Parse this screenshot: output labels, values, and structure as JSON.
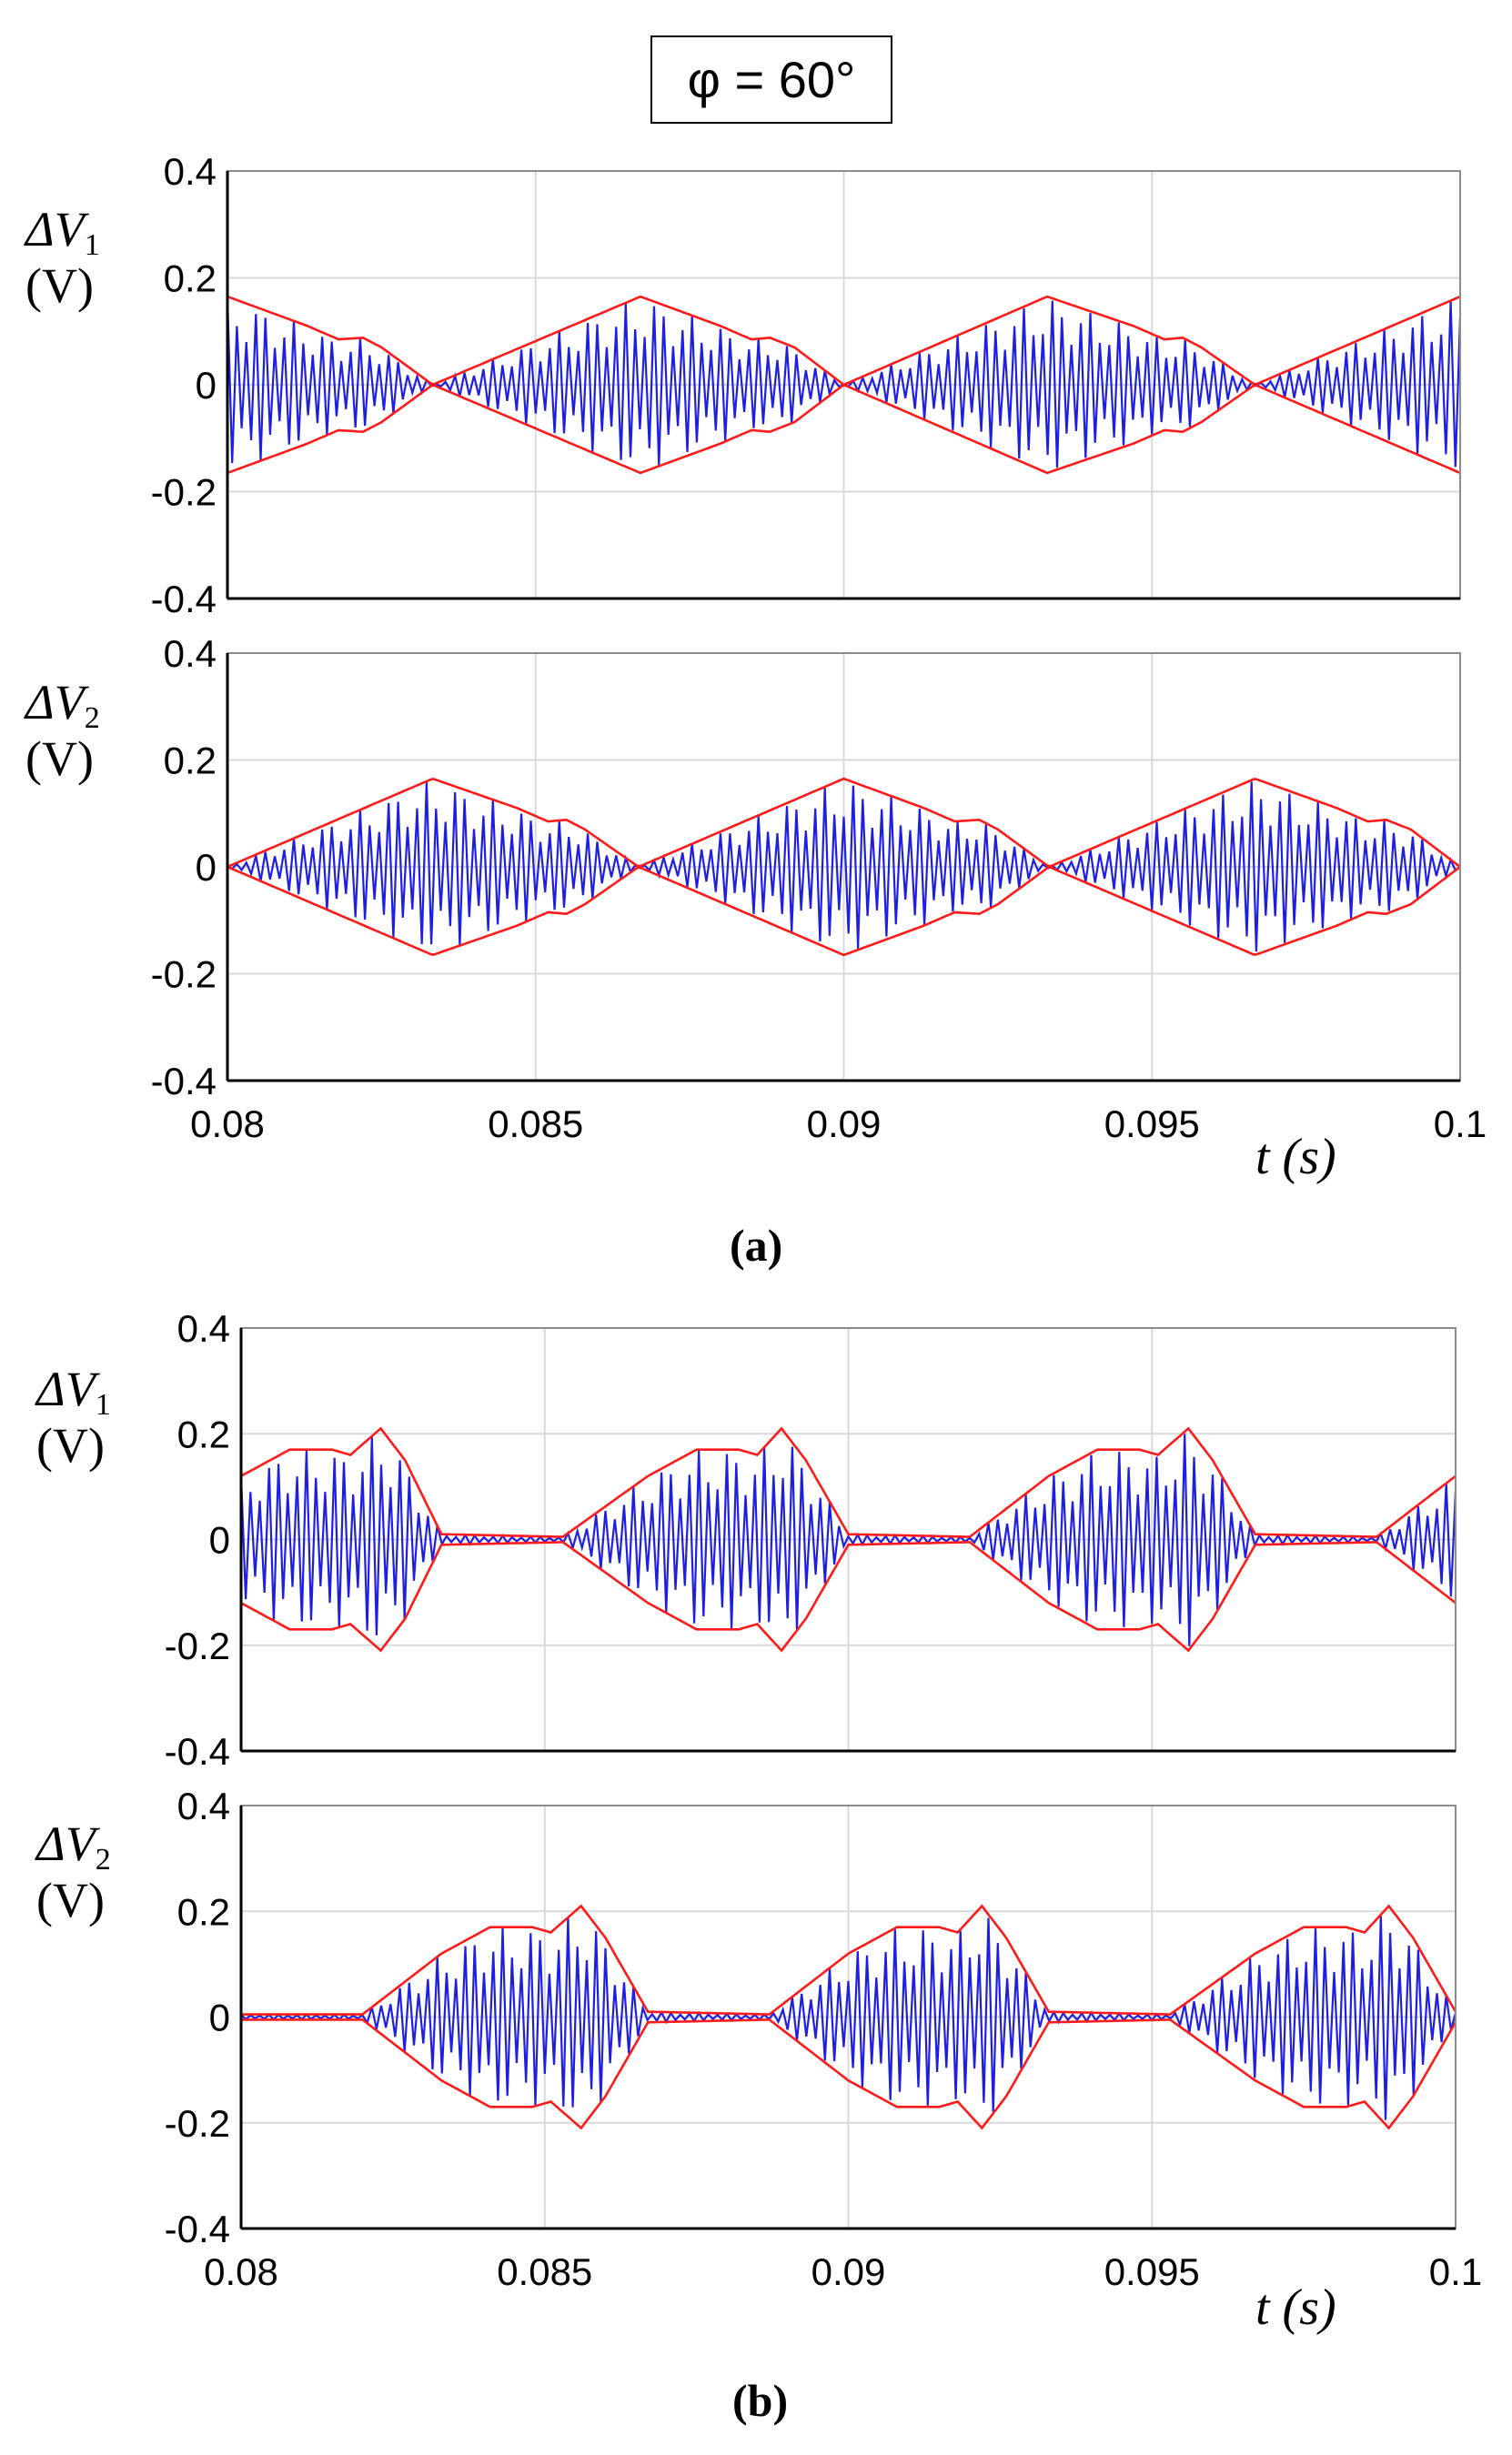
{
  "figure": {
    "phase_label": "φ = 60°",
    "captions": [
      "(a)",
      "(b)"
    ],
    "time_label": "t (s)",
    "colors": {
      "signal": "#1f1fe0",
      "envelope": "#ff1a1a",
      "grid": "#d9d9d9",
      "axes": "#000000"
    }
  },
  "chart_data": [
    {
      "type": "line",
      "panel": "(a) top",
      "ylabel_symbol": "ΔV",
      "ylabel_sub": "1",
      "ylabel_unit": "(V)",
      "xlim": [
        0.08,
        0.1
      ],
      "ylim": [
        -0.4,
        0.4
      ],
      "xticks": [
        "0.08",
        "0.085",
        "0.09",
        "0.095",
        "0.1"
      ],
      "yticks": [
        "0.4",
        "0.2",
        "0",
        "-0.2",
        "-0.4"
      ],
      "grid": true,
      "series": [
        {
          "name": "envelope",
          "x": [
            0.08,
            0.0813,
            0.0818,
            0.0822,
            0.0825,
            0.08333,
            0.0867,
            0.088,
            0.0885,
            0.0888,
            0.0892,
            0.09,
            0.0933,
            0.0947,
            0.0952,
            0.0955,
            0.0958,
            0.09667,
            0.1
          ],
          "y": [
            0.165,
            0.11,
            0.085,
            0.088,
            0.07,
            0.0,
            0.165,
            0.11,
            0.085,
            0.088,
            0.07,
            0.0,
            0.165,
            0.11,
            0.085,
            0.088,
            0.07,
            0.0,
            0.165
          ]
        }
      ]
    },
    {
      "type": "line",
      "panel": "(a) bottom",
      "ylabel_symbol": "ΔV",
      "ylabel_sub": "2",
      "ylabel_unit": "(V)",
      "xlim": [
        0.08,
        0.1
      ],
      "ylim": [
        -0.4,
        0.4
      ],
      "xticks": [
        "0.08",
        "0.085",
        "0.09",
        "0.095",
        "0.1"
      ],
      "yticks": [
        "0.4",
        "0.2",
        "0",
        "-0.2",
        "-0.4"
      ],
      "grid": true,
      "series": [
        {
          "name": "envelope",
          "x": [
            0.08,
            0.08333,
            0.0847,
            0.0852,
            0.0855,
            0.0858,
            0.08667,
            0.09,
            0.0913,
            0.0918,
            0.0922,
            0.0925,
            0.09333,
            0.09667,
            0.098,
            0.0985,
            0.0988,
            0.0992,
            0.1
          ],
          "y": [
            0.0,
            0.165,
            0.11,
            0.085,
            0.088,
            0.07,
            0.0,
            0.165,
            0.11,
            0.085,
            0.088,
            0.07,
            0.0,
            0.165,
            0.11,
            0.085,
            0.088,
            0.07,
            0.0
          ]
        }
      ]
    },
    {
      "type": "line",
      "panel": "(b) top",
      "ylabel_symbol": "ΔV",
      "ylabel_sub": "1",
      "ylabel_unit": "(V)",
      "xlim": [
        0.08,
        0.1
      ],
      "ylim": [
        -0.4,
        0.4
      ],
      "xticks": [
        "0.08",
        "0.085",
        "0.09",
        "0.095",
        "0.1"
      ],
      "yticks": [
        "0.4",
        "0.2",
        "0",
        "-0.2",
        "-0.4"
      ],
      "grid": true,
      "series": [
        {
          "name": "envelope",
          "x": [
            0.08,
            0.0808,
            0.0815,
            0.0818,
            0.0823,
            0.0827,
            0.0833,
            0.0853,
            0.0867,
            0.0875,
            0.0882,
            0.0885,
            0.0889,
            0.0893,
            0.09,
            0.092,
            0.0933,
            0.0941,
            0.0948,
            0.0951,
            0.0956,
            0.096,
            0.0967,
            0.0987,
            0.1
          ],
          "y": [
            0.12,
            0.17,
            0.17,
            0.16,
            0.21,
            0.15,
            0.01,
            0.005,
            0.12,
            0.17,
            0.17,
            0.16,
            0.21,
            0.15,
            0.01,
            0.005,
            0.12,
            0.17,
            0.17,
            0.16,
            0.21,
            0.15,
            0.01,
            0.005,
            0.12
          ]
        }
      ]
    },
    {
      "type": "line",
      "panel": "(b) bottom",
      "ylabel_symbol": "ΔV",
      "ylabel_sub": "2",
      "ylabel_unit": "(V)",
      "xlim": [
        0.08,
        0.1
      ],
      "ylim": [
        -0.4,
        0.4
      ],
      "xticks": [
        "0.08",
        "0.085",
        "0.09",
        "0.095",
        "0.1"
      ],
      "yticks": [
        "0.4",
        "0.2",
        "0",
        "-0.2",
        "-0.4"
      ],
      "grid": true,
      "series": [
        {
          "name": "envelope",
          "x": [
            0.08,
            0.082,
            0.0833,
            0.0841,
            0.0848,
            0.0851,
            0.0856,
            0.086,
            0.0867,
            0.0887,
            0.09,
            0.0908,
            0.0915,
            0.0918,
            0.0922,
            0.0926,
            0.0933,
            0.0953,
            0.0967,
            0.0975,
            0.0982,
            0.0985,
            0.0989,
            0.0993,
            0.1
          ],
          "y": [
            0.005,
            0.005,
            0.12,
            0.17,
            0.17,
            0.16,
            0.21,
            0.15,
            0.01,
            0.005,
            0.12,
            0.17,
            0.17,
            0.16,
            0.21,
            0.15,
            0.01,
            0.005,
            0.12,
            0.17,
            0.17,
            0.16,
            0.21,
            0.15,
            0.01
          ]
        }
      ]
    }
  ]
}
